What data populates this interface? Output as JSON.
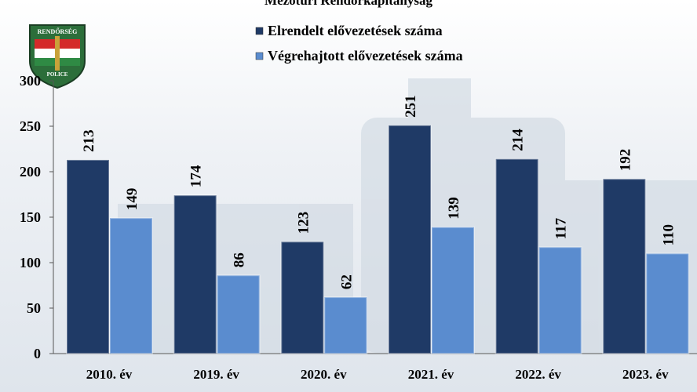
{
  "chart_data": {
    "type": "bar",
    "title": "Mezőtúri Rendőrkapitányság",
    "annotations": [
      "RENDŐRSÉG",
      "POLICE"
    ],
    "categories": [
      "2010. év",
      "2019. év",
      "2020. év",
      "2021. év",
      "2022. év",
      "2023. év"
    ],
    "series": [
      {
        "name": "Elrendelt elővezetések száma",
        "color": "#1f3a66",
        "values": [
          213,
          174,
          123,
          251,
          214,
          192
        ]
      },
      {
        "name": "Végrehajtott elővezetések száma",
        "color": "#5a8ccf",
        "values": [
          149,
          86,
          62,
          139,
          117,
          110
        ]
      }
    ],
    "ylim": [
      0,
      300
    ],
    "yticks": [
      0,
      50,
      100,
      150,
      200,
      250,
      300
    ],
    "legend": "top"
  }
}
